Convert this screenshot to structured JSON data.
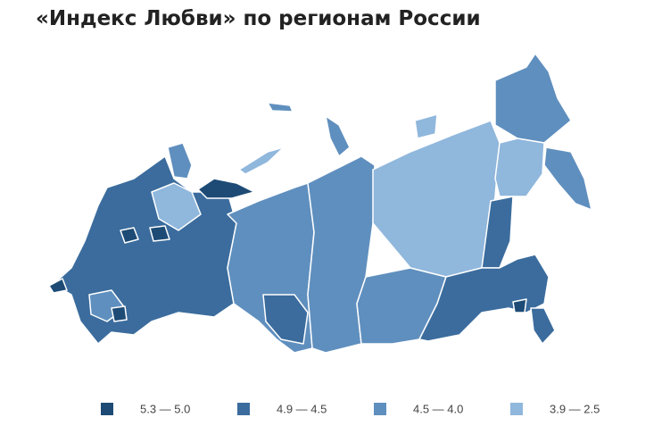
{
  "title": "«Индекс Любви» по регионам России",
  "legend": {
    "items": [
      {
        "label": "5.3 — 5.0",
        "color": "#1d4b75"
      },
      {
        "label": "4.9 — 4.5",
        "color": "#3b6c9d"
      },
      {
        "label": "4.5 — 4.0",
        "color": "#5f8fbe"
      },
      {
        "label": "3.9 — 2.5",
        "color": "#90b7dc"
      }
    ]
  }
}
